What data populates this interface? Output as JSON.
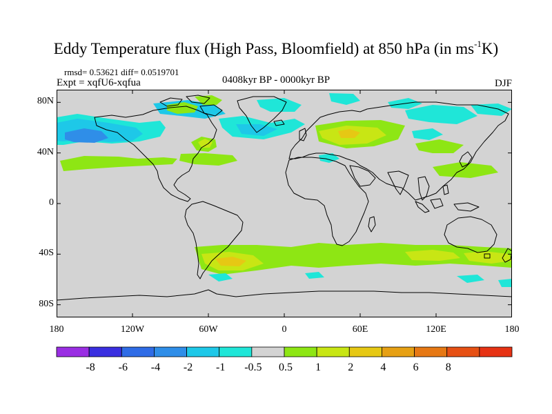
{
  "figure": {
    "title_main": "Eddy Temperature flux (High Pass, Bloomfield) at 850 hPa (in ms",
    "title_sup": "-1",
    "title_end": "K)",
    "stats": "rmsd= 0.53621  diff= 0.0519701",
    "experiment": "Expt = xqfU6-xqfua",
    "period": "0408kyr BP - 0000kyr BP",
    "season": "DJF"
  },
  "map": {
    "projection": "cylindrical-equidistant",
    "lon_range": [
      -180,
      180
    ],
    "lat_range": [
      -90,
      90
    ],
    "background_color": "#d3d3d3",
    "coastline_color": "#000000",
    "y_ticks": [
      {
        "lat": 80,
        "label": "80N"
      },
      {
        "lat": 40,
        "label": "40N"
      },
      {
        "lat": 0,
        "label": "0"
      },
      {
        "lat": -40,
        "label": "40S"
      },
      {
        "lat": -80,
        "label": "80S"
      }
    ],
    "x_ticks": [
      {
        "lon": -180,
        "label": "180"
      },
      {
        "lon": -120,
        "label": "120W"
      },
      {
        "lon": -60,
        "label": "60W"
      },
      {
        "lon": 0,
        "label": "0"
      },
      {
        "lon": 60,
        "label": "60E"
      },
      {
        "lon": 120,
        "label": "120E"
      },
      {
        "lon": 180,
        "label": "180"
      }
    ]
  },
  "colorbar": {
    "colors": [
      "#9a2ee3",
      "#3a2fe0",
      "#2f6ce6",
      "#2f8ee8",
      "#1ec8e8",
      "#1fe6d8",
      "#d3d3d3",
      "#8ee614",
      "#c8e614",
      "#e6c814",
      "#e6a014",
      "#e67814",
      "#e65014",
      "#e63214"
    ],
    "labels": [
      "-8",
      "-6",
      "-4",
      "-2",
      "-1",
      "-0.5",
      "0.5",
      "1",
      "2",
      "4",
      "6",
      "8"
    ]
  },
  "chart_data": {
    "type": "heatmap",
    "title": "Eddy Temperature flux (High Pass, Bloomfield) at 850 hPa (in ms-1K)",
    "xlabel": "",
    "ylabel": "",
    "xlim": [
      -180,
      180
    ],
    "ylim": [
      -90,
      90
    ],
    "levels": [
      -8,
      -6,
      -4,
      -2,
      -1,
      -0.5,
      0.5,
      1,
      2,
      4,
      6,
      8
    ],
    "anomaly_regions": [
      {
        "lon": -155,
        "lat": 50,
        "value": -2.5
      },
      {
        "lon": -170,
        "lat": 53,
        "value": -1
      },
      {
        "lon": -125,
        "lat": 52,
        "value": -1
      },
      {
        "lon": -150,
        "lat": 33,
        "value": 1.2
      },
      {
        "lon": -115,
        "lat": 33,
        "value": 0.8
      },
      {
        "lon": -75,
        "lat": 38,
        "value": 0.8
      },
      {
        "lon": -62,
        "lat": 47,
        "value": 2
      },
      {
        "lon": -90,
        "lat": 75,
        "value": -0.8
      },
      {
        "lon": -105,
        "lat": 72,
        "value": 1
      },
      {
        "lon": -72,
        "lat": 76,
        "value": 1
      },
      {
        "lon": -48,
        "lat": 58,
        "value": -1
      },
      {
        "lon": -25,
        "lat": 54,
        "value": -2
      },
      {
        "lon": -12,
        "lat": 65,
        "value": -0.8
      },
      {
        "lon": 25,
        "lat": 78,
        "value": -1
      },
      {
        "lon": 12,
        "lat": 38,
        "value": -0.8
      },
      {
        "lon": 40,
        "lat": 52,
        "value": 1.5
      },
      {
        "lon": 45,
        "lat": 53,
        "value": 4
      },
      {
        "lon": 68,
        "lat": 55,
        "value": 0.8
      },
      {
        "lon": 88,
        "lat": 62,
        "value": -0.8
      },
      {
        "lon": 80,
        "lat": 75,
        "value": -1
      },
      {
        "lon": 98,
        "lat": 48,
        "value": -0.8
      },
      {
        "lon": 125,
        "lat": 55,
        "value": -0.8
      },
      {
        "lon": 112,
        "lat": 30,
        "value": 0.8
      },
      {
        "lon": 150,
        "lat": 35,
        "value": 1
      },
      {
        "lon": 150,
        "lat": 73,
        "value": -0.8
      },
      {
        "lon": -60,
        "lat": -40,
        "value": 1
      },
      {
        "lon": -55,
        "lat": -43,
        "value": 3
      },
      {
        "lon": -10,
        "lat": -40,
        "value": 1
      },
      {
        "lon": 25,
        "lat": -35,
        "value": 1
      },
      {
        "lon": 65,
        "lat": -40,
        "value": 1
      },
      {
        "lon": 100,
        "lat": -40,
        "value": 1.5
      },
      {
        "lon": 150,
        "lat": -43,
        "value": 1.8
      },
      {
        "lon": -30,
        "lat": -60,
        "value": -0.8
      },
      {
        "lon": 100,
        "lat": -60,
        "value": -0.8
      },
      {
        "lon": 160,
        "lat": -66,
        "value": -0.8
      }
    ]
  }
}
